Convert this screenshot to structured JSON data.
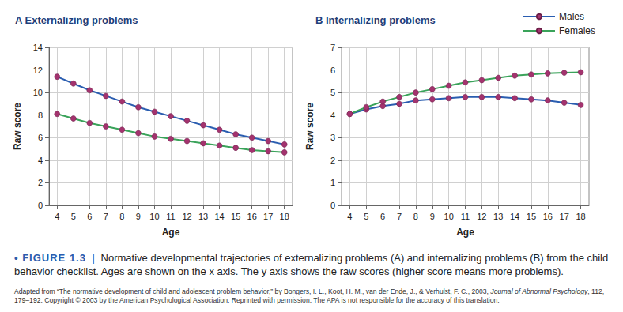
{
  "chart_data": [
    {
      "type": "line",
      "title": "A Externalizing problems",
      "xlabel": "Age",
      "ylabel": "Raw score",
      "x": [
        4,
        5,
        6,
        7,
        8,
        9,
        10,
        11,
        12,
        13,
        14,
        15,
        16,
        17,
        18
      ],
      "series": [
        {
          "name": "Males",
          "color": "#2a5db0",
          "marker": "circle",
          "values": [
            11.4,
            10.8,
            10.2,
            9.7,
            9.2,
            8.7,
            8.3,
            7.9,
            7.5,
            7.1,
            6.7,
            6.3,
            6.0,
            5.7,
            5.4
          ]
        },
        {
          "name": "Females",
          "color": "#3aa35a",
          "marker": "circle",
          "values": [
            8.1,
            7.7,
            7.3,
            7.0,
            6.7,
            6.4,
            6.1,
            5.9,
            5.7,
            5.5,
            5.3,
            5.1,
            4.9,
            4.8,
            4.7
          ]
        }
      ],
      "xlim": [
        3.5,
        18.5
      ],
      "xticks": [
        4,
        5,
        6,
        7,
        8,
        9,
        10,
        11,
        12,
        13,
        14,
        15,
        16,
        17,
        18
      ],
      "ylim": [
        0,
        14
      ],
      "yticks": [
        0,
        2,
        4,
        6,
        8,
        10,
        12,
        14
      ],
      "grid": true
    },
    {
      "type": "line",
      "title": "B Internalizing problems",
      "xlabel": "Age",
      "ylabel": "Raw score",
      "x": [
        4,
        5,
        6,
        7,
        8,
        9,
        10,
        11,
        12,
        13,
        14,
        15,
        16,
        17,
        18
      ],
      "series": [
        {
          "name": "Males",
          "color": "#2a5db0",
          "marker": "circle",
          "values": [
            4.05,
            4.25,
            4.4,
            4.5,
            4.65,
            4.7,
            4.75,
            4.8,
            4.8,
            4.8,
            4.75,
            4.7,
            4.65,
            4.55,
            4.45
          ]
        },
        {
          "name": "Females",
          "color": "#3aa35a",
          "marker": "circle",
          "values": [
            4.05,
            4.35,
            4.6,
            4.8,
            5.0,
            5.15,
            5.3,
            5.45,
            5.55,
            5.65,
            5.75,
            5.8,
            5.85,
            5.88,
            5.9
          ]
        }
      ],
      "xlim": [
        3.5,
        18.5
      ],
      "xticks": [
        4,
        5,
        6,
        7,
        8,
        9,
        10,
        11,
        12,
        13,
        14,
        15,
        16,
        17,
        18
      ],
      "ylim": [
        0,
        7
      ],
      "yticks": [
        0,
        1,
        2,
        3,
        4,
        5,
        6,
        7
      ],
      "grid": true,
      "legend": "upper-right"
    }
  ],
  "caption": {
    "label": "• FIGURE 1.3",
    "separator": "|",
    "text": "Normative developmental trajectories of externalizing problems (A) and internalizing problems (B) from the child behavior checklist. Ages are shown on the x axis. The y axis shows the raw scores (higher score means more problems).",
    "source_before": "Adapted from “The normative development of child and adolescent problem behavior,” by Bongers, I. L., Koot, H. M., van der Ende, J., & Verhulst, F. C., 2003, ",
    "source_journal": "Journal of Abnormal Psychology",
    "source_after": ", 112, 179–192. Copyright © 2003 by the American Psychological Association. Reprinted with permission. The APA is not responsible for the accuracy of this translation."
  }
}
